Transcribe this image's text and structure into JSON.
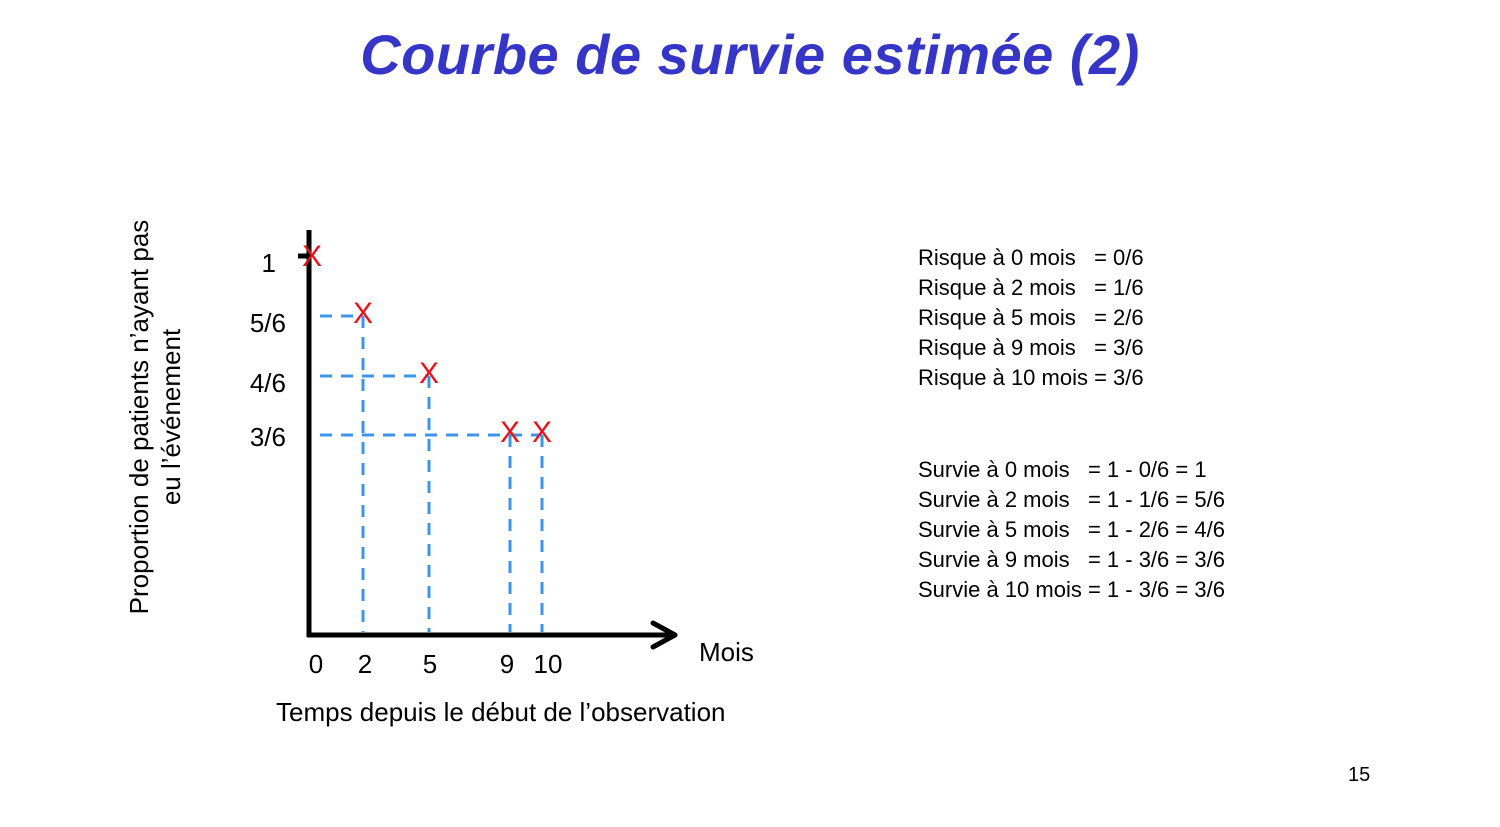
{
  "slide": {
    "title": "Courbe de survie estimée (2)",
    "page_number": "15"
  },
  "chart_data": {
    "type": "line",
    "ylabel_line1": "Proportion de patients n’ayant pas",
    "ylabel_line2": "eu l’événement",
    "xlabel": "Temps depuis le début de l’observation",
    "x_unit": "Mois",
    "x_ticks": [
      "0",
      "2",
      "5",
      "9",
      "10"
    ],
    "y_ticks": [
      "1",
      "5/6",
      "4/6",
      "3/6"
    ],
    "events": [
      {
        "x": 0,
        "y": 1
      },
      {
        "x": 2,
        "y": 0.8333
      },
      {
        "x": 5,
        "y": 0.6667
      },
      {
        "x": 9,
        "y": 0.5
      },
      {
        "x": 10,
        "y": 0.5
      }
    ],
    "event_marker": "X",
    "colors": {
      "axis": "#000000",
      "guides": "#3d95ea",
      "markers": "#e8121a",
      "title": "#3535c8"
    }
  },
  "risk": [
    "Risque à 0 mois   = 0/6",
    "Risque à 2 mois   = 1/6",
    "Risque à 5 mois   = 2/6",
    "Risque à 9 mois   = 3/6",
    "Risque à 10 mois = 3/6"
  ],
  "survival": [
    "Survie à 0 mois   = 1 - 0/6 = 1",
    "Survie à 2 mois   = 1 - 1/6 = 5/6",
    "Survie à 5 mois   = 1 - 2/6 = 4/6",
    "Survie à 9 mois   = 1 - 3/6 = 3/6",
    "Survie à 10 mois = 1 - 3/6 = 3/6"
  ]
}
